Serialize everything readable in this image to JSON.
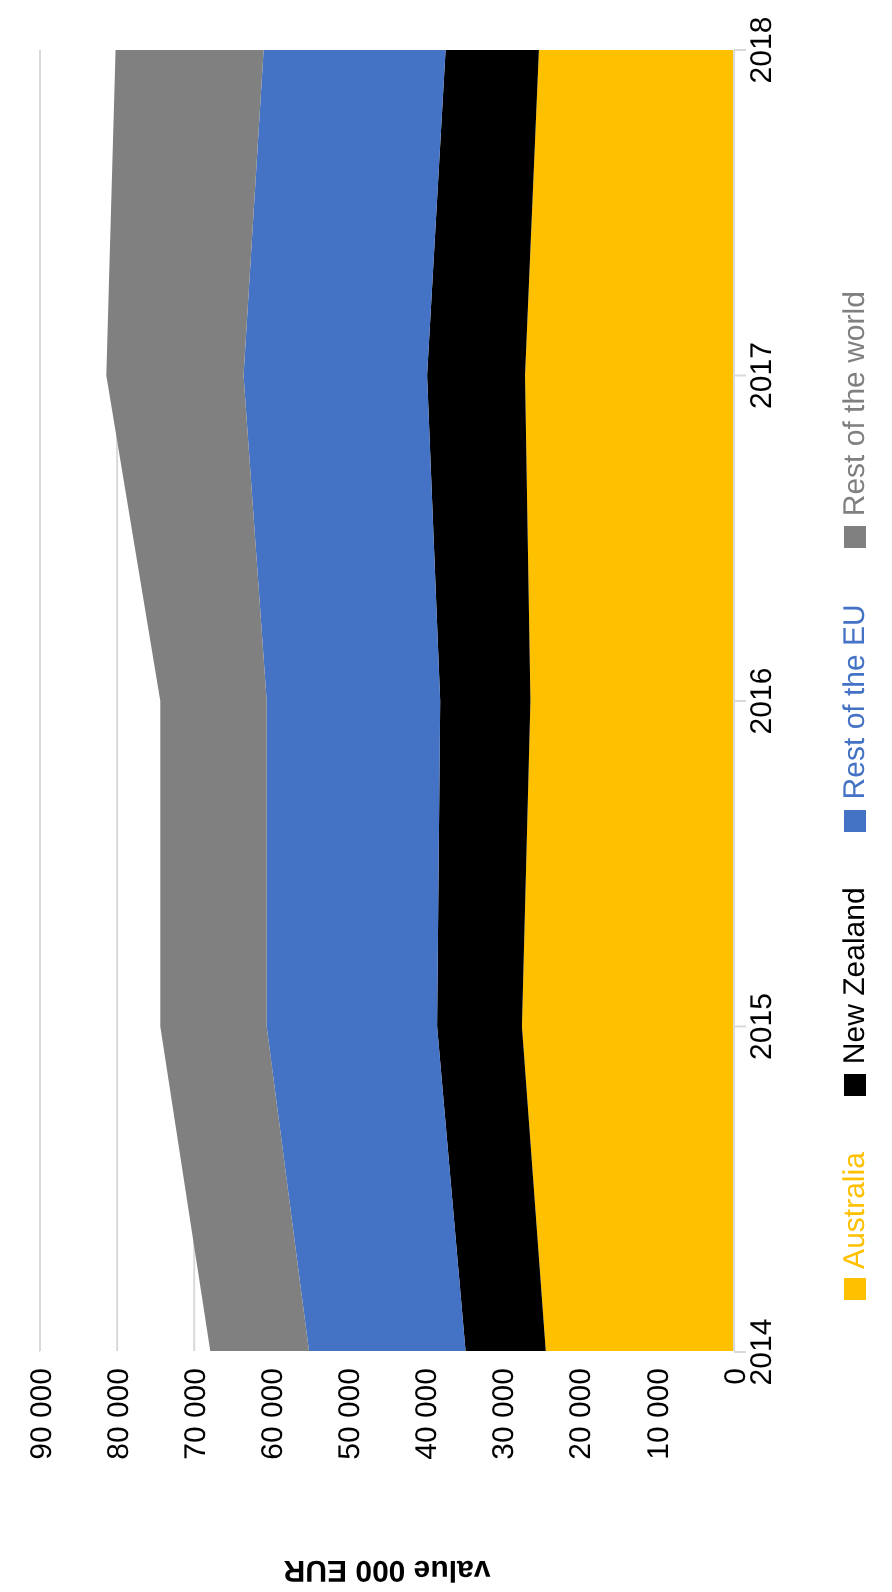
{
  "chart_data": {
    "type": "area",
    "stacked": true,
    "orientation": "horizontal",
    "xlabel": "value 000 EUR",
    "categories": [
      "2018",
      "2017",
      "2016",
      "2015",
      "2014"
    ],
    "xlim": [
      90000,
      0
    ],
    "xticks": [
      {
        "value": 90000,
        "label": "90 000"
      },
      {
        "value": 80000,
        "label": "80 000"
      },
      {
        "value": 70000,
        "label": "70 000"
      },
      {
        "value": 60000,
        "label": "60 000"
      },
      {
        "value": 50000,
        "label": "50 000"
      },
      {
        "value": 40000,
        "label": "40 000"
      },
      {
        "value": 30000,
        "label": "30 000"
      },
      {
        "value": 20000,
        "label": "20 000"
      },
      {
        "value": 10000,
        "label": "10 000"
      },
      {
        "value": 0,
        "label": "0"
      }
    ],
    "grid": "x",
    "legend": "right",
    "series": [
      {
        "name": "Australia",
        "color": "#ffc000",
        "values": [
          25300,
          27100,
          26400,
          27500,
          24400
        ]
      },
      {
        "name": "New Zealand",
        "color": "#000000",
        "values": [
          12100,
          12700,
          11700,
          11000,
          10400
        ]
      },
      {
        "name": "Rest of the EU",
        "color": "#4472c4",
        "values": [
          23600,
          23800,
          22500,
          22100,
          20300
        ]
      },
      {
        "name": "Rest of the world",
        "color": "#808080",
        "values": [
          19200,
          17800,
          13800,
          13800,
          12800
        ]
      }
    ]
  }
}
